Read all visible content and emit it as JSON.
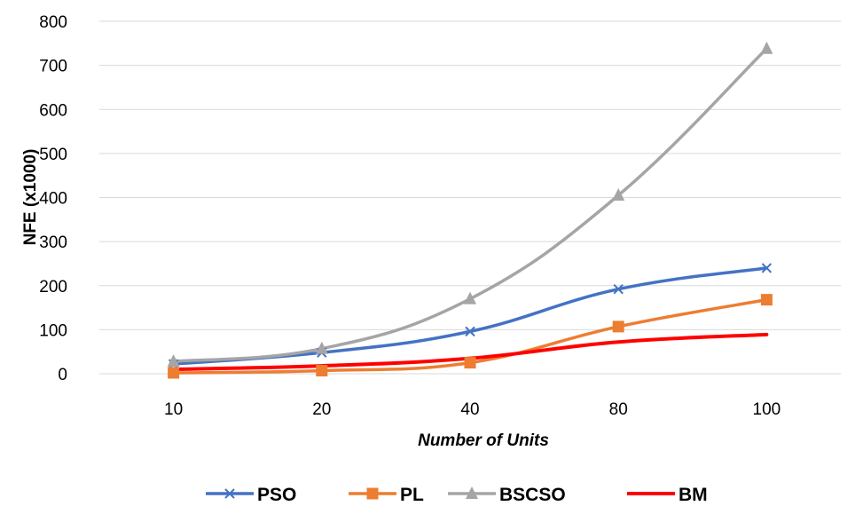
{
  "chart_data": {
    "type": "line",
    "categories": [
      "10",
      "20",
      "40",
      "80",
      "100"
    ],
    "series": [
      {
        "name": "PSO",
        "values": [
          22,
          48,
          96,
          192,
          240
        ],
        "color": "#4472C4",
        "marker": "x-mark"
      },
      {
        "name": "PL",
        "values": [
          2,
          7,
          25,
          107,
          168
        ],
        "color": "#ED7D31",
        "marker": "square"
      },
      {
        "name": "BSCSO",
        "values": [
          28,
          57,
          170,
          405,
          738
        ],
        "color": "#A5A5A5",
        "marker": "triangle"
      },
      {
        "name": "BM",
        "values": [
          10,
          18,
          35,
          72,
          89
        ],
        "color": "#FF0000",
        "marker": "none"
      }
    ],
    "xlabel": "Number of Units",
    "ylabel": "NFE (x1000)",
    "ylim": [
      0,
      800
    ],
    "yticks": [
      "0",
      "100",
      "200",
      "300",
      "400",
      "500",
      "600",
      "700",
      "800"
    ],
    "grid": "horizontal",
    "legend_position": "bottom",
    "smooth": true
  }
}
